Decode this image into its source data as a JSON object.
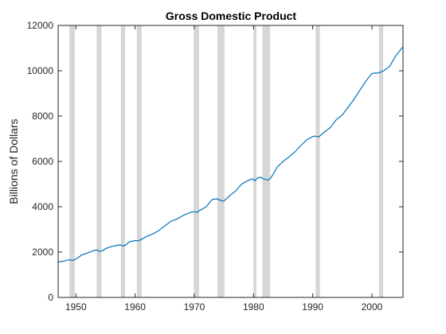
{
  "chart_data": {
    "type": "line",
    "title": "Gross Domestic Product",
    "xlabel": "",
    "ylabel": "Billions of Dollars",
    "xlim": [
      1947,
      2005.25
    ],
    "ylim": [
      0,
      12000
    ],
    "x_ticks": [
      1950,
      1960,
      1970,
      1980,
      1990,
      2000
    ],
    "y_ticks": [
      0,
      2000,
      4000,
      6000,
      8000,
      10000,
      12000
    ],
    "grid": false,
    "line_color": "#0072bd",
    "band_color": "#d6d6d6",
    "shaded_periods": [
      [
        1948.9,
        1949.8
      ],
      [
        1953.5,
        1954.3
      ],
      [
        1957.6,
        1958.3
      ],
      [
        1960.3,
        1961.1
      ],
      [
        1969.9,
        1970.8
      ],
      [
        1973.9,
        1975.1
      ],
      [
        1980.0,
        1980.5
      ],
      [
        1981.5,
        1982.8
      ],
      [
        1990.5,
        1991.2
      ],
      [
        2001.2,
        2001.9
      ]
    ],
    "series": [
      {
        "x": [
          1947,
          1948,
          1948.75,
          1949.5,
          1950,
          1951,
          1952,
          1953,
          1953.5,
          1954,
          1954.5,
          1955,
          1956,
          1957,
          1957.5,
          1958,
          1958.5,
          1959,
          1960,
          1960.5,
          1961,
          1962,
          1963,
          1964,
          1965,
          1966,
          1967,
          1968,
          1969,
          1969.75,
          1970.5,
          1971,
          1972,
          1973,
          1973.75,
          1974.5,
          1975,
          1976,
          1977,
          1978,
          1979,
          1979.75,
          1980.25,
          1980.75,
          1981.25,
          1981.75,
          1982.5,
          1983,
          1984,
          1985,
          1986,
          1987,
          1988,
          1989,
          1990,
          1990.5,
          1991,
          1992,
          1993,
          1994,
          1995,
          1996,
          1997,
          1998,
          1999,
          2000,
          2000.5,
          2001,
          2001.5,
          2002,
          2003,
          2004,
          2005,
          2005.25
        ],
        "y": [
          1560,
          1600,
          1660,
          1630,
          1700,
          1870,
          1960,
          2070,
          2090,
          2040,
          2060,
          2150,
          2250,
          2300,
          2320,
          2270,
          2330,
          2450,
          2510,
          2500,
          2550,
          2700,
          2800,
          2950,
          3150,
          3350,
          3450,
          3600,
          3720,
          3780,
          3760,
          3850,
          4000,
          4320,
          4350,
          4280,
          4250,
          4500,
          4700,
          5000,
          5150,
          5230,
          5150,
          5280,
          5300,
          5220,
          5180,
          5300,
          5750,
          6000,
          6200,
          6420,
          6700,
          6950,
          7100,
          7120,
          7080,
          7300,
          7500,
          7850,
          8050,
          8400,
          8750,
          9150,
          9550,
          9880,
          9900,
          9900,
          9940,
          10000,
          10200,
          10650,
          10980,
          11050
        ]
      }
    ]
  }
}
